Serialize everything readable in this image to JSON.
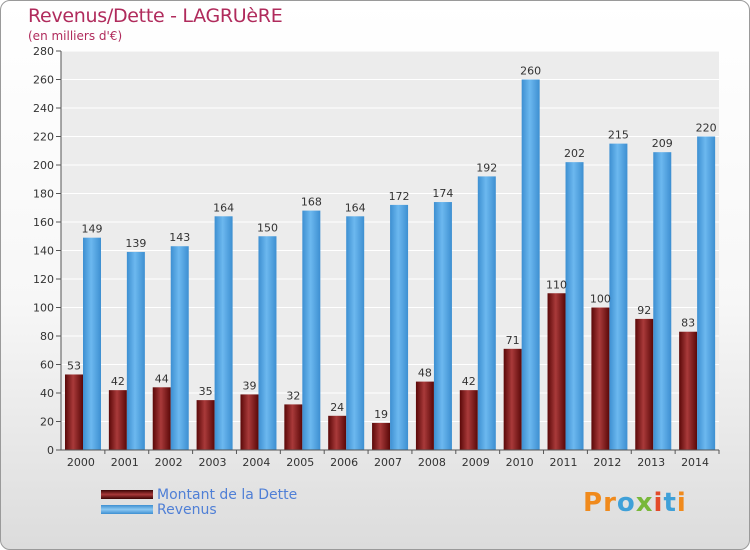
{
  "header": {
    "title": "Revenus/Dette - LAGRUèRE",
    "subtitle": "(en milliers d'€)"
  },
  "legend": {
    "items": [
      {
        "label": "Montant de la Dette",
        "color": "#7a1212"
      },
      {
        "label": "Revenus",
        "color": "#4fa3e3"
      }
    ]
  },
  "logo": {
    "text": "Proxiti",
    "colors": [
      "#f08a1c",
      "#f08a1c",
      "#3fa0d8",
      "#79b83a",
      "#e34a2a",
      "#3fa0d8",
      "#f08a1c"
    ]
  },
  "chart_data": {
    "type": "bar",
    "title": "Revenus/Dette - LAGRUèRE",
    "ylabel": "(en milliers d'€)",
    "xlabel": "",
    "categories": [
      "2000",
      "2001",
      "2002",
      "2003",
      "2004",
      "2005",
      "2006",
      "2007",
      "2008",
      "2009",
      "2010",
      "2011",
      "2012",
      "2013",
      "2014"
    ],
    "series": [
      {
        "name": "Montant de la Dette",
        "color": "#7a1212",
        "values": [
          53,
          42,
          44,
          35,
          39,
          32,
          24,
          19,
          48,
          42,
          71,
          110,
          100,
          92,
          83
        ]
      },
      {
        "name": "Revenus",
        "color": "#4fa3e3",
        "values": [
          149,
          139,
          143,
          164,
          150,
          168,
          164,
          172,
          174,
          192,
          260,
          202,
          215,
          209,
          220
        ]
      }
    ],
    "ylim": [
      0,
      280
    ],
    "yticks": [
      0,
      20,
      40,
      60,
      80,
      100,
      120,
      140,
      160,
      180,
      200,
      220,
      240,
      260,
      280
    ],
    "grid": true
  }
}
